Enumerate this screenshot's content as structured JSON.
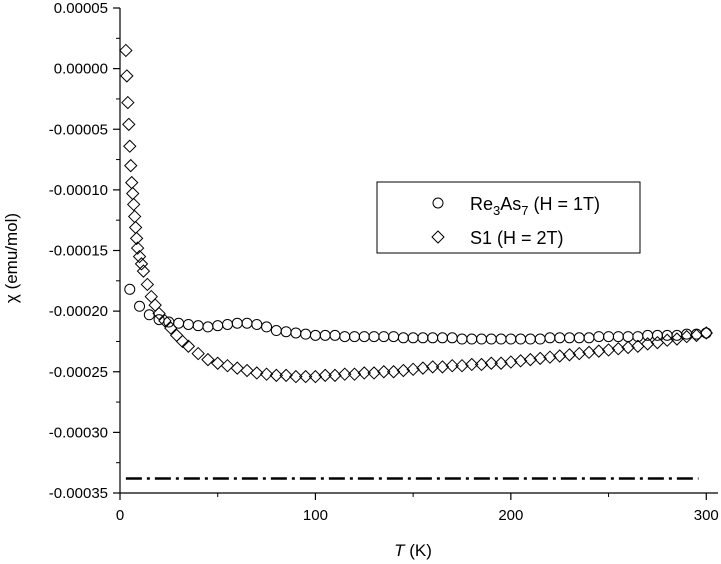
{
  "chart_data": {
    "type": "scatter",
    "title": "",
    "xlabel": {
      "symbol": "T",
      "unit": " (K)"
    },
    "ylabel": "χ (emu/mol)",
    "xlim": [
      0,
      306
    ],
    "ylim": [
      -0.00035,
      5e-05
    ],
    "grid": false,
    "legend_position": "right-middle",
    "xticks": [
      {
        "value": 0,
        "label": "0"
      },
      {
        "value": 100,
        "label": "100"
      },
      {
        "value": 200,
        "label": "200"
      },
      {
        "value": 300,
        "label": "300"
      }
    ],
    "yticks": [
      {
        "value": 5e-05,
        "label": "0.00005"
      },
      {
        "value": 0.0,
        "label": "0.00000"
      },
      {
        "value": -5e-05,
        "label": "-0.00005"
      },
      {
        "value": -0.0001,
        "label": "-0.00010"
      },
      {
        "value": -0.00015,
        "label": "-0.00015"
      },
      {
        "value": -0.0002,
        "label": "-0.00020"
      },
      {
        "value": -0.00025,
        "label": "-0.00025"
      },
      {
        "value": -0.0003,
        "label": "-0.00030"
      },
      {
        "value": -0.00035,
        "label": "-0.00035"
      }
    ],
    "series": [
      {
        "name": {
          "base": "Re",
          "sub1": "3",
          "mid": "As",
          "sub2": "7",
          "tail": " (H = 1T)"
        },
        "marker": "circle",
        "x": [
          5,
          10,
          15,
          20,
          25,
          30,
          35,
          40,
          45,
          50,
          55,
          60,
          65,
          70,
          75,
          80,
          85,
          90,
          95,
          100,
          105,
          110,
          115,
          120,
          125,
          130,
          135,
          140,
          145,
          150,
          155,
          160,
          165,
          170,
          175,
          180,
          185,
          190,
          195,
          200,
          205,
          210,
          215,
          220,
          225,
          230,
          235,
          240,
          245,
          250,
          255,
          260,
          265,
          270,
          275,
          280,
          285,
          290,
          295,
          300
        ],
        "y": [
          -0.000182,
          -0.000196,
          -0.000203,
          -0.000207,
          -0.000209,
          -0.00021,
          -0.000211,
          -0.000212,
          -0.000213,
          -0.000212,
          -0.000211,
          -0.00021,
          -0.00021,
          -0.000211,
          -0.000213,
          -0.000216,
          -0.000217,
          -0.000218,
          -0.000219,
          -0.00022,
          -0.00022,
          -0.00022,
          -0.000221,
          -0.000221,
          -0.000221,
          -0.000221,
          -0.000221,
          -0.000221,
          -0.000222,
          -0.000222,
          -0.000222,
          -0.000222,
          -0.000222,
          -0.000222,
          -0.000223,
          -0.000223,
          -0.000223,
          -0.000223,
          -0.000223,
          -0.000223,
          -0.000223,
          -0.000223,
          -0.000223,
          -0.000222,
          -0.000222,
          -0.000222,
          -0.000222,
          -0.000222,
          -0.000221,
          -0.000221,
          -0.000221,
          -0.000221,
          -0.000221,
          -0.00022,
          -0.00022,
          -0.00022,
          -0.00022,
          -0.000219,
          -0.000219,
          -0.000218
        ]
      },
      {
        "name": "S1 (H = 2T)",
        "marker": "diamond",
        "x": [
          3,
          3.5,
          4,
          4.5,
          5,
          5.5,
          6,
          6.5,
          7,
          7.5,
          8,
          8.5,
          9,
          10,
          11,
          12,
          14,
          16,
          18,
          20,
          23,
          26,
          29,
          32,
          35,
          40,
          45,
          50,
          55,
          60,
          65,
          70,
          75,
          80,
          85,
          90,
          95,
          100,
          105,
          110,
          115,
          120,
          125,
          130,
          135,
          140,
          145,
          150,
          155,
          160,
          165,
          170,
          175,
          180,
          185,
          190,
          195,
          200,
          205,
          210,
          215,
          220,
          225,
          230,
          235,
          240,
          245,
          250,
          255,
          260,
          265,
          270,
          275,
          280,
          285,
          290,
          295,
          300
        ],
        "y": [
          1.5e-05,
          -6e-06,
          -2.8e-05,
          -4.6e-05,
          -6.4e-05,
          -8e-05,
          -9.4e-05,
          -0.000103,
          -0.000112,
          -0.000122,
          -0.000131,
          -0.00014,
          -0.000148,
          -0.000155,
          -0.000161,
          -0.000167,
          -0.000178,
          -0.000188,
          -0.000195,
          -0.000202,
          -0.000208,
          -0.000214,
          -0.00022,
          -0.000225,
          -0.000229,
          -0.000235,
          -0.00024,
          -0.000243,
          -0.000245,
          -0.000247,
          -0.000249,
          -0.000251,
          -0.000252,
          -0.000253,
          -0.000253,
          -0.000254,
          -0.000254,
          -0.000254,
          -0.000253,
          -0.000253,
          -0.000252,
          -0.000252,
          -0.000251,
          -0.000251,
          -0.00025,
          -0.00025,
          -0.000249,
          -0.000248,
          -0.000247,
          -0.000246,
          -0.000246,
          -0.000245,
          -0.000245,
          -0.000244,
          -0.000244,
          -0.000243,
          -0.000243,
          -0.000242,
          -0.000241,
          -0.00024,
          -0.000239,
          -0.000238,
          -0.000237,
          -0.000236,
          -0.000235,
          -0.000234,
          -0.000233,
          -0.000232,
          -0.000231,
          -0.00023,
          -0.000229,
          -0.000227,
          -0.000226,
          -0.000224,
          -0.000223,
          -0.000221,
          -0.00022,
          -0.000218
        ]
      }
    ],
    "reference_line": {
      "style": "dash-dot",
      "y": -0.000338,
      "x_range": [
        3,
        296
      ]
    }
  }
}
